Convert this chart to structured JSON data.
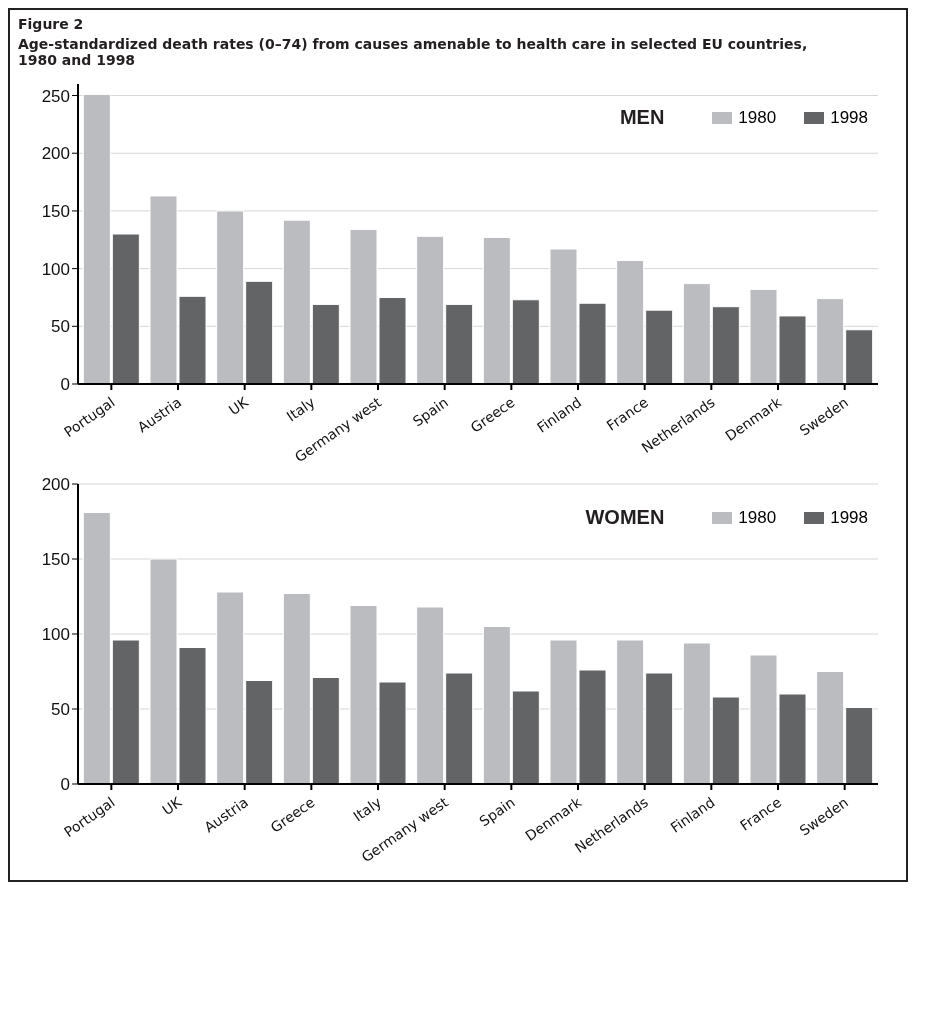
{
  "chart_data": [
    {
      "type": "bar",
      "title": "Figure 2",
      "subtitle": "Age-standardized death rates (0–74) from causes amenable to health care in selected EU countries, 1980 and 1998",
      "annotations": [
        "MEN"
      ],
      "categories": [
        "Portugal",
        "Austria",
        "UK",
        "Italy",
        "Germany west",
        "Spain",
        "Greece",
        "Finland",
        "France",
        "Netherlands",
        "Denmark",
        "Sweden"
      ],
      "series": [
        {
          "name": "1980",
          "color": "#bbbcc0",
          "values": [
            251,
            163,
            150,
            142,
            134,
            128,
            127,
            117,
            107,
            87,
            82,
            74
          ]
        },
        {
          "name": "1998",
          "color": "#636466",
          "values": [
            130,
            76,
            89,
            69,
            75,
            69,
            73,
            70,
            64,
            67,
            59,
            47
          ]
        }
      ],
      "ylim": [
        0,
        260
      ],
      "yticks": [
        0,
        50,
        100,
        150,
        200,
        250
      ],
      "grid": "y",
      "legend": "top right"
    },
    {
      "type": "bar",
      "annotations": [
        "WOMEN"
      ],
      "categories": [
        "Portugal",
        "UK",
        "Austria",
        "Greece",
        "Italy",
        "Germany west",
        "Spain",
        "Denmark",
        "Netherlands",
        "Finland",
        "France",
        "Sweden"
      ],
      "series": [
        {
          "name": "1980",
          "color": "#bbbcc0",
          "values": [
            181,
            150,
            128,
            127,
            119,
            118,
            105,
            96,
            96,
            94,
            86,
            75
          ]
        },
        {
          "name": "1998",
          "color": "#636466",
          "values": [
            96,
            91,
            69,
            71,
            68,
            74,
            62,
            76,
            74,
            58,
            60,
            51
          ]
        }
      ],
      "ylim": [
        0,
        200
      ],
      "yticks": [
        0,
        50,
        100,
        150,
        200
      ],
      "grid": "y",
      "legend": "top right"
    }
  ]
}
